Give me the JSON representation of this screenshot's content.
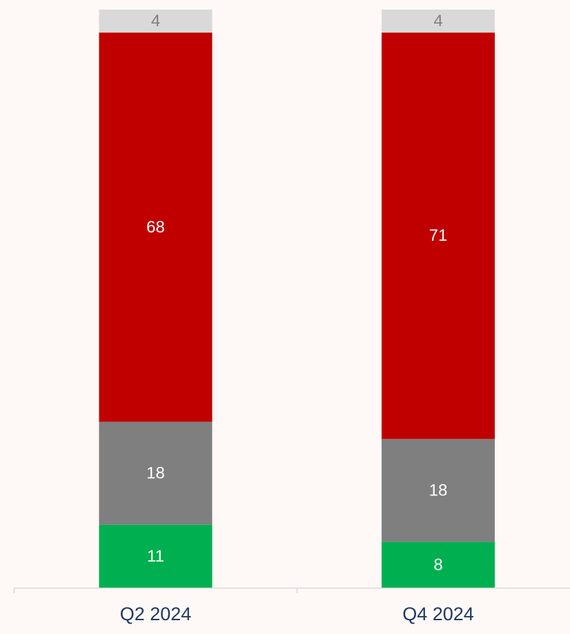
{
  "chart_data": {
    "type": "bar",
    "stacked": true,
    "title": "",
    "xlabel": "",
    "ylabel": "",
    "categories": [
      "Q2 2024",
      "Q4 2024"
    ],
    "ylim": [
      0,
      101
    ],
    "grid": false,
    "legend": "none",
    "series": [
      {
        "values": [
          11,
          8
        ],
        "color": "#00B050",
        "label_color": "#FFFFFF"
      },
      {
        "values": [
          18,
          18
        ],
        "color": "#7F7F7F",
        "label_color": "#FFFFFF"
      },
      {
        "values": [
          68,
          71
        ],
        "color": "#C00000",
        "label_color": "#FFFFFF"
      },
      {
        "values": [
          4,
          4
        ],
        "color": "#D9D9D9",
        "label_color": "#7F7F7F"
      }
    ],
    "category_label_color": "#1F3864",
    "axis_color": "#D9D9D9"
  }
}
